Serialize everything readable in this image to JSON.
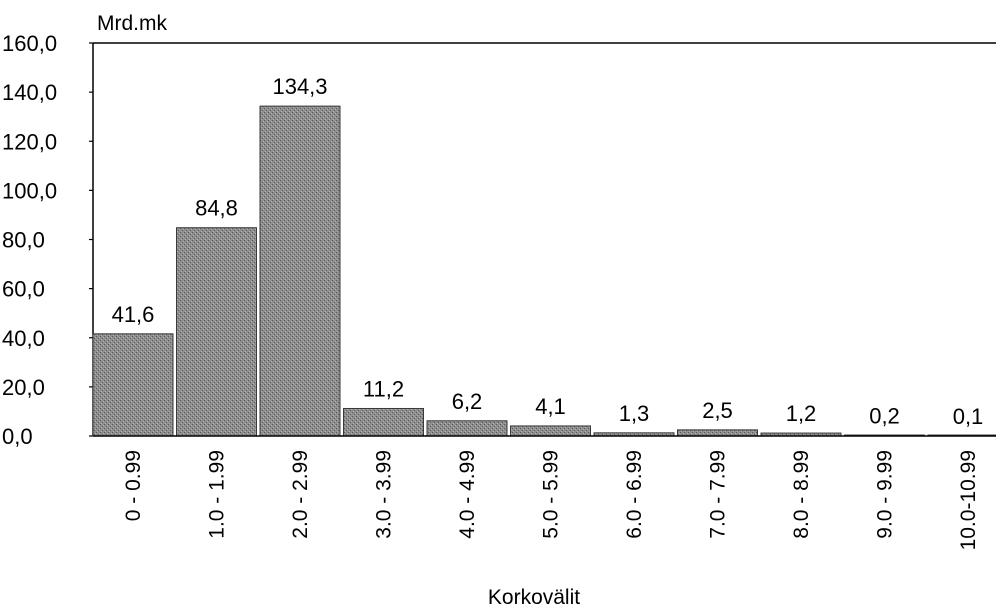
{
  "chart_data": {
    "type": "bar",
    "title": "",
    "unit_label": "Mrd.mk",
    "xlabel": "Korkovälit",
    "ylabel": "",
    "ylim": [
      0,
      160
    ],
    "yticks": [
      "0,0",
      "20,0",
      "40,0",
      "60,0",
      "80,0",
      "100,0",
      "120,0",
      "140,0",
      "160,0"
    ],
    "categories": [
      "0 - 0.99",
      "1.0 - 1.99",
      "2.0 - 2.99",
      "3.0 - 3.99",
      "4.0 - 4.99",
      "5.0 - 5.99",
      "6.0 - 6.99",
      "7.0 - 7.99",
      "8.0 - 8.99",
      "9.0 - 9.99",
      "10.0-10.99"
    ],
    "values": [
      41.6,
      84.8,
      134.3,
      11.2,
      6.2,
      4.1,
      1.3,
      2.5,
      1.2,
      0.2,
      0.1
    ],
    "value_labels": [
      "41,6",
      "84,8",
      "134,3",
      "11,2",
      "6,2",
      "4,1",
      "1,3",
      "2,5",
      "1,2",
      "0,2",
      "0,1"
    ],
    "grid": false,
    "bar_color": "#8c8c8c"
  }
}
